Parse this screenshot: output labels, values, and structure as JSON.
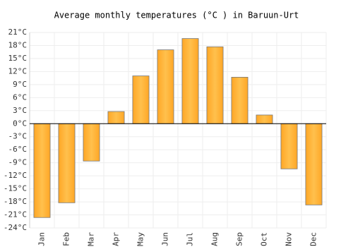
{
  "chart_data": {
    "type": "bar",
    "title": "Average monthly temperatures (°C ) in Baruun-Urt",
    "categories": [
      "Jan",
      "Feb",
      "Mar",
      "Apr",
      "May",
      "Jun",
      "Jul",
      "Aug",
      "Sep",
      "Oct",
      "Nov",
      "Dec"
    ],
    "values": [
      -21.6,
      -18.2,
      -8.6,
      2.8,
      11.0,
      17.0,
      19.6,
      17.7,
      10.7,
      2.0,
      -10.4,
      -18.7
    ],
    "color": "#ffa726",
    "ylim": [
      -24,
      21
    ],
    "yticks": [
      {
        "value": -24,
        "label": "-24°C"
      },
      {
        "value": -21,
        "label": "-21°C"
      },
      {
        "value": -18,
        "label": "-18°C"
      },
      {
        "value": -15,
        "label": "-15°C"
      },
      {
        "value": -12,
        "label": "-12°C"
      },
      {
        "value": -9,
        "label": "-9°C"
      },
      {
        "value": -6,
        "label": "-6°C"
      },
      {
        "value": -3,
        "label": "-3°C"
      },
      {
        "value": 0,
        "label": "0°C"
      },
      {
        "value": 3,
        "label": "3°C"
      },
      {
        "value": 6,
        "label": "6°C"
      },
      {
        "value": 9,
        "label": "9°C"
      },
      {
        "value": 12,
        "label": "12°C"
      },
      {
        "value": 15,
        "label": "15°C"
      },
      {
        "value": 18,
        "label": "18°C"
      },
      {
        "value": 21,
        "label": "21°C"
      }
    ],
    "grid": true
  }
}
